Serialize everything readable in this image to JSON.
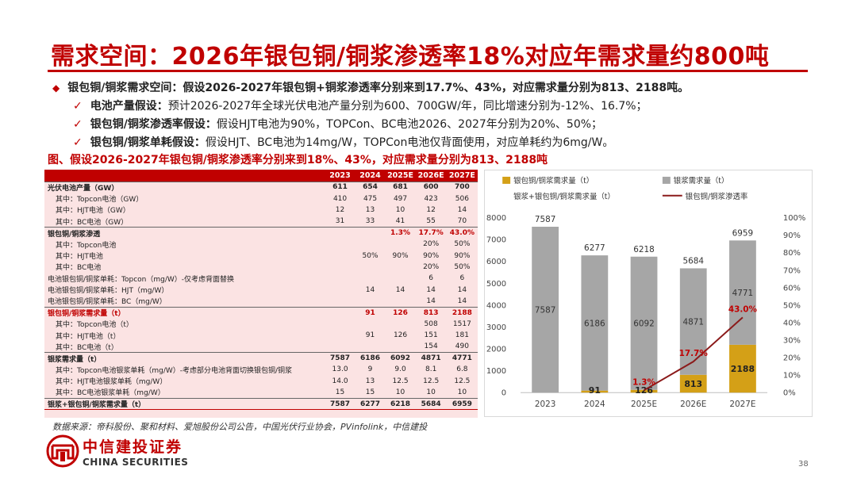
{
  "title": "需求空间：2026年银包铜/铜浆渗透率18%对应年需求量约800吨",
  "bullets": {
    "main": "银包铜/铜浆需求空间：假设2026-2027年银包铜+铜浆渗透率分别来到17.7%、43%，对应需求量分别为813、2188吨。",
    "subs": [
      {
        "label": "电池产量假设：",
        "text": "预计2026-2027年全球光伏电池产量分别为600、700GW/年，同比增速分别为-12%、16.7%；"
      },
      {
        "label": "银包铜/铜浆渗透率假设：",
        "text": "假设HJT电池为90%，TOPCon、BC电池2026、2027年分别为20%、50%；"
      },
      {
        "label": "银包铜/铜浆单耗假设：",
        "text": "假设HJT、BC电池为14mg/W，TOPCon电池仅背面使用，对应单耗约为6mg/W。"
      }
    ]
  },
  "figure_caption": "图、假设2026-2027年银包铜/铜浆渗透率分别来到18%、43%，对应需求量分别为813、2188吨",
  "table": {
    "headers": [
      "",
      "2023",
      "2024",
      "2025E",
      "2026E",
      "2027E"
    ],
    "rows": [
      {
        "cls": "sec",
        "cells": [
          "光伏电池产量（GW）",
          "611",
          "654",
          "681",
          "600",
          "700"
        ]
      },
      {
        "cls": "sub",
        "cells": [
          "其中：Topcon电池（GW）",
          "410",
          "475",
          "497",
          "423",
          "506"
        ]
      },
      {
        "cls": "sub",
        "cells": [
          "其中：HJT电池（GW）",
          "12",
          "13",
          "10",
          "12",
          "14"
        ]
      },
      {
        "cls": "sub",
        "cells": [
          "其中：BC电池（GW）",
          "31",
          "33",
          "41",
          "55",
          "70"
        ]
      },
      {
        "cls": "sec",
        "cells": [
          "银包铜/铜浆渗透",
          "",
          "",
          "1.3%",
          "17.7%",
          "43.0%"
        ]
      },
      {
        "cls": "sub",
        "cells": [
          "其中：Topcon电池",
          "",
          "",
          "",
          "20%",
          "50%"
        ]
      },
      {
        "cls": "sub",
        "cells": [
          "其中：HJT电池",
          "",
          "50%",
          "90%",
          "90%",
          "90%"
        ]
      },
      {
        "cls": "sub",
        "cells": [
          "其中：BC电池",
          "",
          "",
          "",
          "20%",
          "50%"
        ]
      },
      {
        "cls": "plain top",
        "cells": [
          "电池银包铜/铜浆单耗：Topcon（mg/W）-仅考虑背面替换",
          "",
          "",
          "",
          "6",
          "6"
        ]
      },
      {
        "cls": "plain",
        "cells": [
          "电池银包铜/铜浆单耗：HJT（mg/W）",
          "",
          "14",
          "14",
          "14",
          "14"
        ]
      },
      {
        "cls": "plain",
        "cells": [
          "电池银包铜/铜浆单耗：BC（mg/W）",
          "",
          "",
          "",
          "14",
          "14"
        ]
      },
      {
        "cls": "sec red",
        "cells": [
          "银包铜/铜浆需求量（t）",
          "",
          "91",
          "126",
          "813",
          "2188"
        ]
      },
      {
        "cls": "sub",
        "cells": [
          "其中：Topcon电池（t）",
          "",
          "",
          "",
          "508",
          "1517"
        ]
      },
      {
        "cls": "sub",
        "cells": [
          "其中：HJT电池（t）",
          "",
          "91",
          "126",
          "151",
          "181"
        ]
      },
      {
        "cls": "sub",
        "cells": [
          "其中：BC电池（t）",
          "",
          "",
          "",
          "154",
          "490"
        ]
      },
      {
        "cls": "sec",
        "cells": [
          "银浆需求量（t）",
          "7587",
          "6186",
          "6092",
          "4871",
          "4771"
        ]
      },
      {
        "cls": "sub",
        "cells": [
          "其中：Topcon电池银浆单耗（mg/W）-考虑部分电池背面切换银包铜/铜浆",
          "13.0",
          "9",
          "9.0",
          "8.1",
          "6.8"
        ]
      },
      {
        "cls": "sub",
        "cells": [
          "其中：HJT电池银浆单耗（mg/W）",
          "14.0",
          "13",
          "12.5",
          "12.5",
          "12.5"
        ]
      },
      {
        "cls": "sub",
        "cells": [
          "其中：BC电池银浆单耗（mg/W）",
          "15",
          "15",
          "10",
          "10",
          "10"
        ]
      },
      {
        "cls": "total",
        "cells": [
          "银浆+银包铜/铜浆需求量（t）",
          "7587",
          "6277",
          "6218",
          "5684",
          "6959"
        ]
      }
    ]
  },
  "chart_data": {
    "type": "bar",
    "categories": [
      "2023",
      "2024",
      "2025E",
      "2026E",
      "2027E"
    ],
    "series": [
      {
        "name": "银包铜/铜浆需求量（t）",
        "type": "bar",
        "color": "#d4a017",
        "values": [
          0,
          91,
          126,
          813,
          2188
        ]
      },
      {
        "name": "银浆需求量（t）",
        "type": "bar",
        "color": "#a6a6a6",
        "values": [
          7587,
          6186,
          6092,
          4871,
          4771
        ]
      },
      {
        "name": "银浆+银包铜/铜浆需求量（t）",
        "type": "total",
        "values": [
          7587,
          6277,
          6218,
          5684,
          6959
        ]
      },
      {
        "name": "银包铜/铜浆渗透率",
        "type": "line",
        "color": "#8b1a1a",
        "axis": "right",
        "values": [
          null,
          null,
          1.3,
          17.7,
          43.0
        ]
      }
    ],
    "gray_labels": [
      "7587",
      "6186",
      "6092",
      "4871",
      "4771"
    ],
    "yellow_labels": [
      "",
      "91",
      "126",
      "813",
      "2188"
    ],
    "total_labels": [
      "7587",
      "6277",
      "6218",
      "5684",
      "6959"
    ],
    "pct_labels": [
      "",
      "",
      "1.3%",
      "17.7%",
      "43.0%"
    ],
    "ylim": [
      0,
      8000
    ],
    "yticks": [
      "0",
      "1000",
      "2000",
      "3000",
      "4000",
      "5000",
      "6000",
      "7000",
      "8000"
    ],
    "y2lim": [
      0,
      100
    ],
    "y2ticks": [
      "0%",
      "10%",
      "20%",
      "30%",
      "40%",
      "50%",
      "60%",
      "70%",
      "80%",
      "90%",
      "100%"
    ],
    "legend_position": "top"
  },
  "source": "数据来源：帝科股份、聚和材料、爱旭股份公司公告，中国光伏行业协会，PVinfolink，中信建投",
  "logo": {
    "cn": "中信建投证券",
    "en": "CHINA SECURITIES"
  },
  "page_number": "38",
  "colors": {
    "accent": "#c00000",
    "table_bg": "#fbe3e3",
    "gold": "#d4a017",
    "gray": "#a6a6a6",
    "line": "#8b1a1a"
  }
}
